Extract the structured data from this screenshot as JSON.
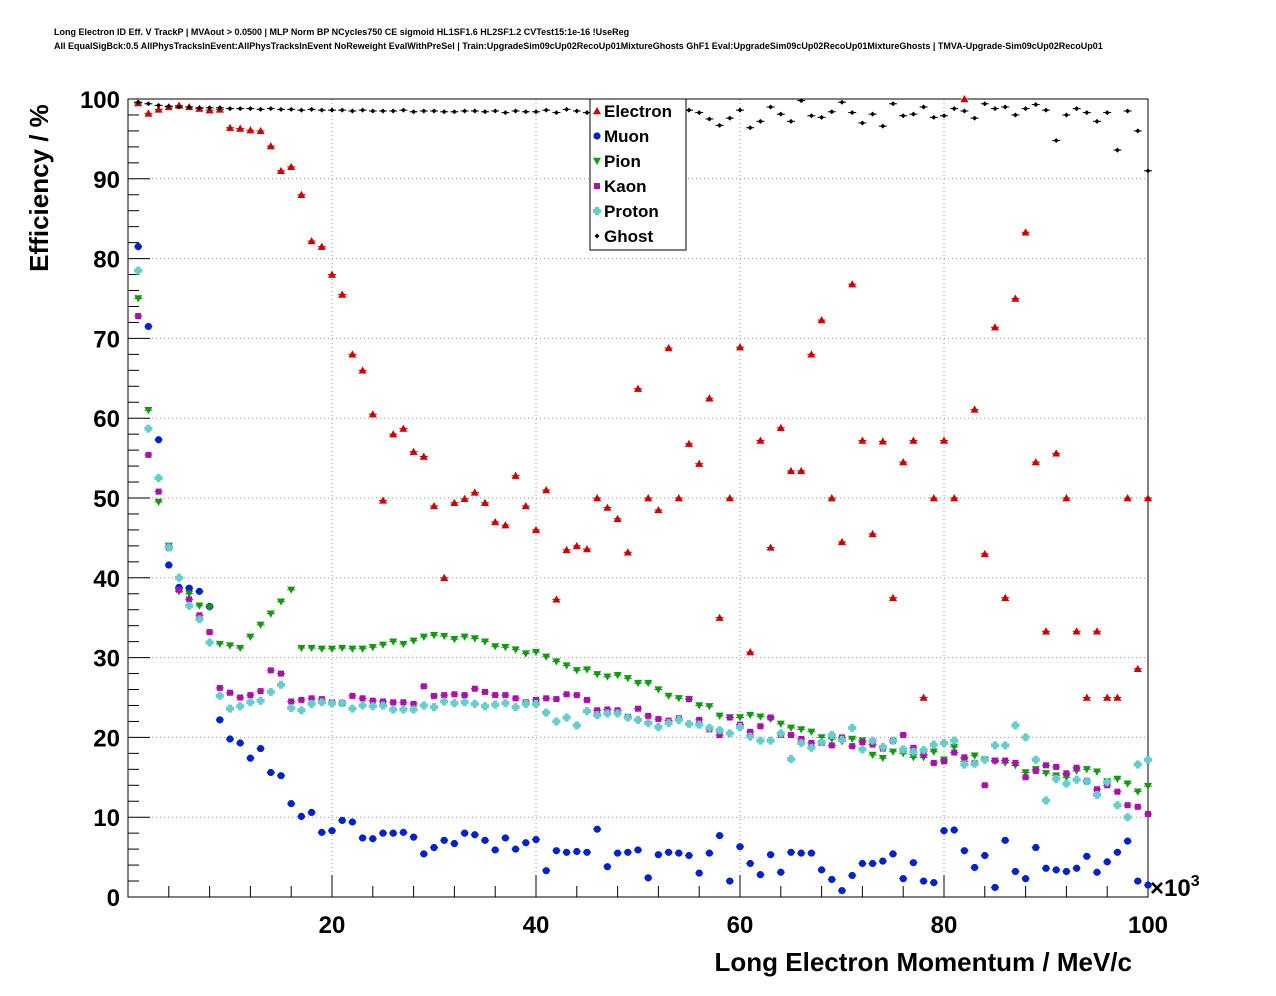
{
  "header": {
    "title": "Long Electron ID Eff. V TrackP | MVAout > 0.0500 | MLP Norm BP NCycles750 CE sigmoid HL1SF1.6 HL2SF1.2 CVTest15:1e-16 !UseReg",
    "subtitle": "All EqualSigBck:0.5 AllPhysTracksInEvent:AllPhysTracksInEvent NoReweight EvalWithPreSel | Train:UpgradeSim09cUp02RecoUp01MixtureGhosts GhF1 Eval:UpgradeSim09cUp02RecoUp01MixtureGhosts | TMVA-Upgrade-Sim09cUp02RecoUp01"
  },
  "colors": {
    "Electron": "#cc0000",
    "Muon": "#0022cc",
    "Pion": "#119911",
    "Kaon": "#aa11aa",
    "Proton": "#66cccc",
    "Ghost": "#000000",
    "grid": "#999999"
  },
  "chart_data": {
    "type": "scatter",
    "xlabel": "Long Electron Momentum / MeV/c",
    "ylabel": "Efficiency / %",
    "x_multiplier_label": "×10",
    "x_multiplier_exp": "3",
    "xlim": [
      0,
      100
    ],
    "ylim": [
      0,
      100
    ],
    "xticks": [
      20,
      40,
      60,
      80,
      100
    ],
    "yticks": [
      0,
      10,
      20,
      30,
      40,
      50,
      60,
      70,
      80,
      90,
      100
    ],
    "grid": true,
    "legend_position": "top-center",
    "series": [
      {
        "name": "Electron",
        "marker": "triangle-up",
        "x": [
          1,
          2,
          3,
          4,
          5,
          6,
          7,
          8,
          9,
          10,
          11,
          12,
          13,
          14,
          15,
          16,
          17,
          18,
          19,
          20,
          21,
          22,
          23,
          24,
          25,
          26,
          27,
          28,
          29,
          30,
          31,
          32,
          33,
          34,
          35,
          36,
          37,
          38,
          39,
          40,
          41,
          42,
          43,
          44,
          45,
          46,
          47,
          48,
          49,
          50,
          51,
          52,
          53,
          54,
          55,
          56,
          57,
          58,
          59,
          60,
          61,
          62,
          63,
          64,
          65,
          66,
          67,
          68,
          69,
          70,
          71,
          72,
          73,
          74,
          75,
          76,
          77,
          78,
          79,
          80,
          81,
          82,
          83,
          84,
          85,
          86,
          87,
          88,
          89,
          90,
          91,
          92,
          93,
          94,
          95,
          96,
          97,
          98,
          99,
          100
        ],
        "y": [
          99.5,
          98.2,
          98.7,
          99.0,
          99.2,
          99.0,
          98.8,
          98.6,
          98.7,
          96.4,
          96.3,
          96.1,
          96.0,
          94.1,
          91.0,
          91.5,
          88.0,
          82.2,
          81.5,
          78.0,
          75.5,
          68.0,
          66.0,
          60.5,
          49.7,
          58.0,
          58.7,
          55.8,
          55.2,
          49.0,
          40.0,
          49.4,
          49.9,
          50.7,
          49.4,
          47.0,
          46.6,
          52.8,
          49.0,
          46.0,
          51.0,
          37.3,
          43.5,
          44.0,
          43.6,
          50.0,
          48.8,
          47.4,
          43.2,
          63.7,
          50.0,
          48.5,
          68.8,
          50.0,
          56.8,
          54.3,
          62.5,
          35.0,
          50.0,
          68.9,
          30.7,
          57.2,
          43.8,
          58.8,
          53.4,
          53.4,
          68.0,
          72.3,
          50.0,
          44.5,
          76.8,
          57.2,
          45.5,
          57.1,
          37.5,
          54.5,
          57.2,
          25.0,
          50.0,
          57.2,
          50.0,
          100.0,
          61.1,
          43.0,
          71.4,
          37.5,
          75.0,
          83.3,
          54.5,
          33.3,
          55.6,
          50.0,
          33.3,
          25.0,
          33.3,
          25.0,
          25.0,
          50.0,
          28.6,
          50.0
        ]
      },
      {
        "name": "Muon",
        "marker": "circle",
        "x": [
          1,
          2,
          3,
          4,
          5,
          6,
          7,
          8,
          9,
          10,
          11,
          12,
          13,
          14,
          15,
          16,
          17,
          18,
          19,
          20,
          21,
          22,
          23,
          24,
          25,
          26,
          27,
          28,
          29,
          30,
          31,
          32,
          33,
          34,
          35,
          36,
          37,
          38,
          39,
          40,
          41,
          42,
          43,
          44,
          45,
          46,
          47,
          48,
          49,
          50,
          51,
          52,
          53,
          54,
          55,
          56,
          57,
          58,
          59,
          60,
          61,
          62,
          63,
          64,
          65,
          66,
          67,
          68,
          69,
          70,
          71,
          72,
          73,
          74,
          75,
          76,
          77,
          78,
          79,
          80,
          81,
          82,
          83,
          84,
          85,
          86,
          87,
          88,
          89,
          90,
          91,
          92,
          93,
          94,
          95,
          96,
          97,
          98,
          99,
          100
        ],
        "y": [
          81.5,
          71.5,
          57.3,
          41.6,
          38.8,
          38.7,
          38.3,
          36.4,
          22.2,
          19.8,
          19.3,
          17.4,
          18.6,
          15.6,
          15.2,
          11.7,
          10.1,
          10.6,
          8.1,
          8.3,
          9.6,
          9.4,
          7.4,
          7.3,
          8.0,
          8.0,
          8.1,
          7.5,
          5.4,
          6.2,
          7.1,
          6.7,
          8.0,
          7.8,
          7.1,
          5.9,
          7.4,
          6.0,
          6.8,
          7.2,
          3.3,
          5.8,
          5.6,
          5.7,
          5.6,
          8.5,
          3.8,
          5.5,
          5.6,
          5.9,
          2.4,
          5.3,
          5.6,
          5.5,
          5.2,
          3.0,
          5.5,
          7.7,
          2.0,
          6.3,
          4.2,
          2.8,
          5.3,
          3.1,
          5.6,
          5.5,
          5.5,
          3.4,
          2.2,
          0.8,
          2.7,
          4.2,
          4.2,
          4.5,
          5.4,
          2.3,
          4.3,
          2.0,
          1.8,
          8.3,
          8.4,
          5.8,
          3.7,
          5.2,
          1.2,
          7.1,
          3.2,
          2.3,
          6.2,
          3.6,
          3.4,
          3.2,
          3.6,
          5.1,
          3.1,
          4.4,
          5.6,
          7.0,
          2.0,
          1.5
        ]
      },
      {
        "name": "Pion",
        "marker": "triangle-down",
        "x": [
          1,
          2,
          3,
          4,
          5,
          6,
          7,
          8,
          9,
          10,
          11,
          12,
          13,
          14,
          15,
          16,
          17,
          18,
          19,
          20,
          21,
          22,
          23,
          24,
          25,
          26,
          27,
          28,
          29,
          30,
          31,
          32,
          33,
          34,
          35,
          36,
          37,
          38,
          39,
          40,
          41,
          42,
          43,
          44,
          45,
          46,
          47,
          48,
          49,
          50,
          51,
          52,
          53,
          54,
          55,
          56,
          57,
          58,
          59,
          60,
          61,
          62,
          63,
          64,
          65,
          66,
          67,
          68,
          69,
          70,
          71,
          72,
          73,
          74,
          75,
          76,
          77,
          78,
          79,
          80,
          81,
          82,
          83,
          84,
          85,
          86,
          87,
          88,
          89,
          90,
          91,
          92,
          93,
          94,
          95,
          96,
          97,
          98,
          99,
          100
        ],
        "y": [
          75.0,
          61.0,
          49.5,
          44.0,
          38.3,
          38.0,
          36.5,
          36.3,
          31.7,
          31.5,
          31.2,
          32.6,
          34.1,
          35.5,
          37.0,
          38.5,
          31.2,
          31.2,
          31.1,
          31.1,
          31.2,
          31.1,
          31.1,
          31.3,
          31.6,
          32.0,
          31.7,
          32.1,
          32.6,
          32.8,
          32.7,
          32.3,
          32.6,
          32.4,
          32.0,
          31.4,
          31.3,
          31.0,
          30.5,
          30.7,
          30.1,
          29.5,
          29.0,
          28.4,
          28.5,
          27.9,
          27.6,
          27.8,
          27.4,
          26.8,
          26.8,
          26.0,
          25.2,
          24.9,
          24.8,
          24.0,
          23.9,
          22.7,
          22.5,
          22.5,
          22.8,
          22.6,
          22.3,
          21.7,
          21.2,
          21.0,
          20.7,
          20.0,
          19.8,
          19.5,
          19.8,
          19.6,
          17.8,
          17.4,
          18.2,
          18.0,
          17.5,
          17.5,
          18.2,
          17.2,
          18.8,
          17.0,
          17.7,
          17.2,
          17.0,
          16.8,
          16.5,
          15.6,
          16.0,
          15.5,
          15.2,
          15.0,
          15.8,
          16.0,
          15.7,
          14.5,
          14.8,
          14.2,
          13.2,
          13.9
        ]
      },
      {
        "name": "Kaon",
        "marker": "square",
        "x": [
          1,
          2,
          3,
          4,
          5,
          6,
          7,
          8,
          9,
          10,
          11,
          12,
          13,
          14,
          15,
          16,
          17,
          18,
          19,
          20,
          21,
          22,
          23,
          24,
          25,
          26,
          27,
          28,
          29,
          30,
          31,
          32,
          33,
          34,
          35,
          36,
          37,
          38,
          39,
          40,
          41,
          42,
          43,
          44,
          45,
          46,
          47,
          48,
          49,
          50,
          51,
          52,
          53,
          54,
          55,
          56,
          57,
          58,
          59,
          60,
          61,
          62,
          63,
          64,
          65,
          66,
          67,
          68,
          69,
          70,
          71,
          72,
          73,
          74,
          75,
          76,
          77,
          78,
          79,
          80,
          81,
          82,
          83,
          84,
          85,
          86,
          87,
          88,
          89,
          90,
          91,
          92,
          93,
          94,
          95,
          96,
          97,
          98,
          99,
          100
        ],
        "y": [
          72.8,
          55.4,
          50.8,
          43.8,
          38.5,
          37.3,
          35.3,
          33.2,
          26.2,
          25.6,
          25.0,
          25.3,
          25.8,
          28.4,
          28.0,
          24.5,
          24.7,
          24.9,
          24.8,
          24.4,
          24.3,
          25.2,
          24.9,
          24.6,
          24.5,
          24.4,
          24.4,
          24.2,
          26.4,
          25.2,
          25.3,
          25.4,
          25.3,
          26.1,
          25.7,
          25.3,
          25.3,
          24.9,
          24.4,
          24.7,
          24.9,
          24.8,
          25.4,
          25.3,
          24.7,
          23.4,
          23.5,
          23.4,
          22.6,
          23.6,
          22.7,
          22.3,
          22.1,
          22.4,
          24.8,
          22.2,
          21.0,
          20.3,
          22.5,
          21.6,
          20.7,
          21.4,
          22.5,
          20.3,
          20.3,
          19.8,
          19.3,
          19.3,
          19.0,
          20.0,
          18.9,
          19.4,
          19.1,
          18.6,
          19.6,
          20.3,
          18.7,
          17.8,
          16.8,
          17.0,
          18.1,
          17.5,
          16.8,
          14.0,
          17.1,
          17.1,
          16.8,
          15.0,
          15.8,
          16.5,
          16.3,
          15.5,
          16.2,
          14.5,
          13.5,
          14.0,
          13.2,
          11.5,
          11.3,
          10.4
        ]
      },
      {
        "name": "Proton",
        "marker": "cross",
        "x": [
          1,
          2,
          3,
          4,
          5,
          6,
          7,
          8,
          9,
          10,
          11,
          12,
          13,
          14,
          15,
          16,
          17,
          18,
          19,
          20,
          21,
          22,
          23,
          24,
          25,
          26,
          27,
          28,
          29,
          30,
          31,
          32,
          33,
          34,
          35,
          36,
          37,
          38,
          39,
          40,
          41,
          42,
          43,
          44,
          45,
          46,
          47,
          48,
          49,
          50,
          51,
          52,
          53,
          54,
          55,
          56,
          57,
          58,
          59,
          60,
          61,
          62,
          63,
          64,
          65,
          66,
          67,
          68,
          69,
          70,
          71,
          72,
          73,
          74,
          75,
          76,
          77,
          78,
          79,
          80,
          81,
          82,
          83,
          84,
          85,
          86,
          87,
          88,
          89,
          90,
          91,
          92,
          93,
          94,
          95,
          96,
          97,
          98,
          99,
          100
        ],
        "y": [
          78.5,
          58.7,
          52.5,
          43.8,
          40.0,
          36.5,
          34.8,
          31.9,
          25.2,
          23.6,
          23.9,
          24.4,
          24.6,
          25.7,
          26.6,
          23.7,
          23.4,
          24.2,
          24.4,
          24.3,
          24.3,
          23.6,
          24.0,
          23.9,
          24.0,
          23.5,
          23.5,
          23.5,
          24.0,
          23.8,
          24.5,
          24.3,
          24.4,
          24.2,
          23.9,
          24.1,
          24.3,
          23.8,
          24.2,
          24.2,
          23.1,
          22.0,
          22.5,
          21.5,
          23.3,
          22.8,
          23.0,
          23.0,
          22.5,
          22.2,
          21.8,
          21.3,
          21.8,
          22.2,
          21.7,
          21.6,
          21.2,
          20.9,
          20.5,
          21.3,
          20.1,
          19.6,
          19.6,
          20.5,
          17.3,
          19.3,
          18.7,
          19.4,
          20.3,
          19.7,
          21.2,
          18.5,
          19.6,
          18.8,
          19.6,
          18.5,
          18.2,
          18.4,
          19.1,
          19.3,
          19.6,
          16.6,
          16.7,
          17.2,
          19.0,
          19.0,
          21.5,
          20.0,
          17.2,
          12.1,
          14.8,
          14.2,
          14.7,
          14.5,
          12.8,
          14.4,
          11.5,
          10.0,
          16.6,
          17.2
        ]
      },
      {
        "name": "Ghost",
        "marker": "diamond",
        "x": [
          1,
          2,
          3,
          4,
          5,
          6,
          7,
          8,
          9,
          10,
          11,
          12,
          13,
          14,
          15,
          16,
          17,
          18,
          19,
          20,
          21,
          22,
          23,
          24,
          25,
          26,
          27,
          28,
          29,
          30,
          31,
          32,
          33,
          34,
          35,
          36,
          37,
          38,
          39,
          40,
          41,
          42,
          43,
          44,
          45,
          46,
          47,
          48,
          49,
          50,
          51,
          52,
          53,
          54,
          55,
          56,
          57,
          58,
          59,
          60,
          61,
          62,
          63,
          64,
          65,
          66,
          67,
          68,
          69,
          70,
          71,
          72,
          73,
          74,
          75,
          76,
          77,
          78,
          79,
          80,
          81,
          82,
          83,
          84,
          85,
          86,
          87,
          88,
          89,
          90,
          91,
          92,
          93,
          94,
          95,
          96,
          97,
          98,
          99,
          100
        ],
        "y": [
          99.6,
          99.4,
          99.2,
          99.1,
          99.0,
          99.0,
          98.9,
          98.9,
          98.9,
          98.8,
          98.8,
          98.8,
          98.7,
          98.8,
          98.7,
          98.7,
          98.6,
          98.7,
          98.6,
          98.6,
          98.6,
          98.5,
          98.6,
          98.5,
          98.5,
          98.5,
          98.6,
          98.4,
          98.5,
          98.5,
          98.4,
          98.4,
          98.5,
          98.5,
          98.4,
          98.5,
          98.3,
          98.5,
          98.4,
          98.4,
          98.6,
          98.3,
          98.7,
          98.5,
          98.3,
          98.2,
          98.5,
          98.2,
          98.8,
          98.5,
          98.7,
          98.2,
          98.2,
          98.4,
          98.6,
          98.3,
          97.5,
          96.7,
          97.6,
          98.6,
          96.4,
          97.2,
          99.0,
          98.1,
          97.2,
          99.8,
          97.9,
          97.7,
          98.4,
          99.6,
          98.3,
          97.0,
          98.1,
          96.6,
          99.4,
          97.9,
          98.1,
          99.0,
          97.7,
          97.9,
          98.8,
          98.5,
          97.6,
          99.4,
          98.8,
          99.0,
          98.0,
          98.8,
          99.3,
          98.6,
          94.8,
          98.0,
          98.8,
          98.3,
          97.2,
          98.3,
          93.6,
          98.5,
          96.0,
          91.0
        ]
      }
    ]
  }
}
